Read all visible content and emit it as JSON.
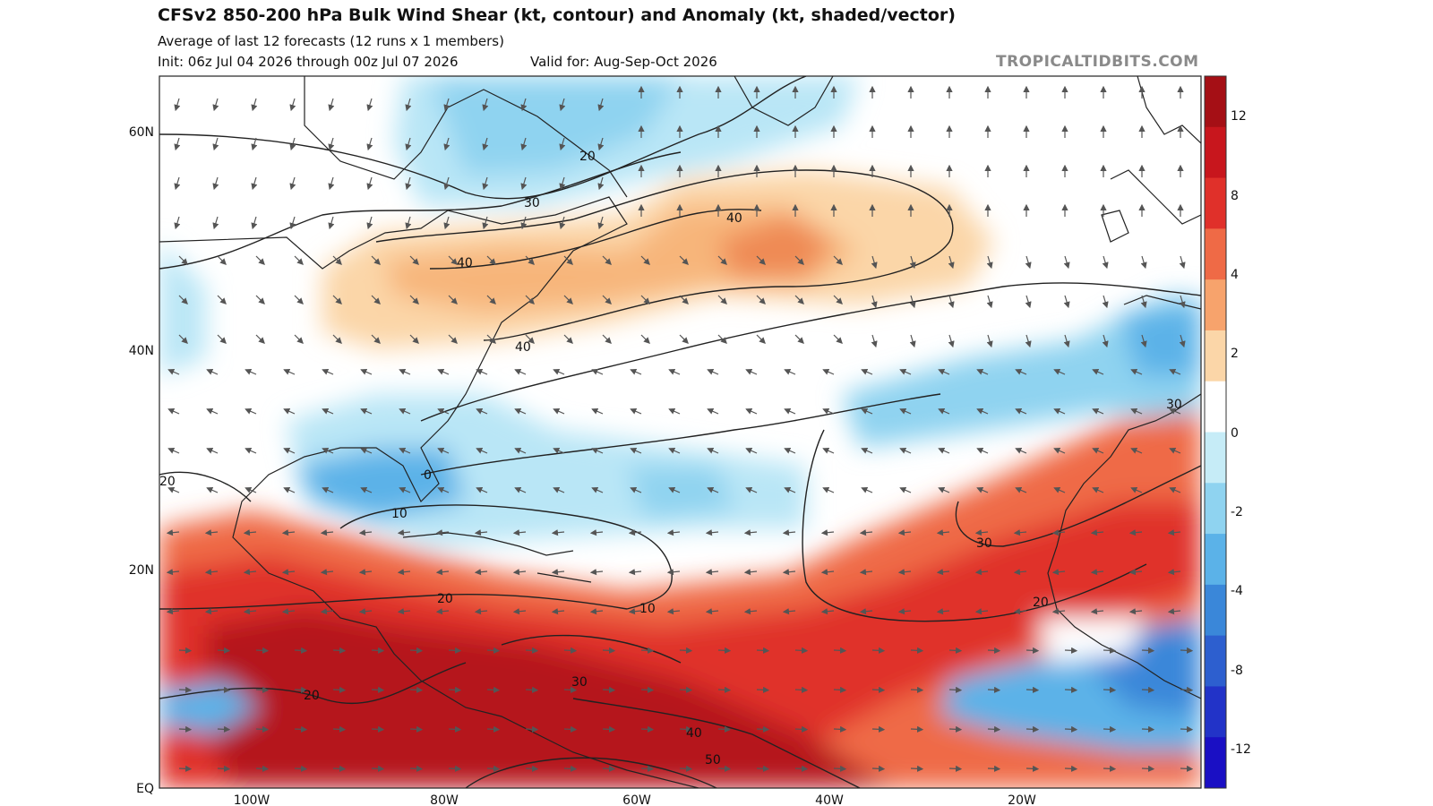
{
  "header": {
    "title": "CFSv2 850-200 hPa Bulk Wind Shear (kt, contour) and Anomaly (kt, shaded/vector)",
    "subtitle": "Average of last 12 forecasts (12 runs x 1 members)",
    "init": "Init: 06z Jul 04 2026 through 00z Jul 07 2026",
    "valid": "Valid for: Aug-Sep-Oct 2026",
    "credit": "TROPICALTIDBITS.COM"
  },
  "axes": {
    "lat_labels": [
      "60N",
      "40N",
      "20N",
      "EQ"
    ],
    "lon_labels": [
      "100W",
      "80W",
      "60W",
      "40W",
      "20W"
    ]
  },
  "colorbar": {
    "labels": [
      "12",
      "8",
      "4",
      "2",
      "0",
      "-2",
      "-4",
      "-8",
      "-12"
    ],
    "colors": [
      "#a50f15",
      "#c8161d",
      "#e0302a",
      "#ef6a46",
      "#f7a36c",
      "#fbd6a8",
      "#ffffff",
      "#c6ecf7",
      "#8fd3f0",
      "#5bb2e8",
      "#3a87d9",
      "#2d5fcf",
      "#2233c8",
      "#1a0fc4"
    ]
  },
  "contour_labels": [
    {
      "text": "20"
    },
    {
      "text": "30"
    },
    {
      "text": "40"
    },
    {
      "text": "40"
    },
    {
      "text": "40"
    },
    {
      "text": "20"
    },
    {
      "text": "10"
    },
    {
      "text": "10"
    },
    {
      "text": "20"
    },
    {
      "text": "20"
    },
    {
      "text": "30"
    },
    {
      "text": "40"
    },
    {
      "text": "50"
    },
    {
      "text": "30"
    },
    {
      "text": "20"
    },
    {
      "text": "30"
    },
    {
      "text": "20"
    },
    {
      "text": "0"
    }
  ]
}
